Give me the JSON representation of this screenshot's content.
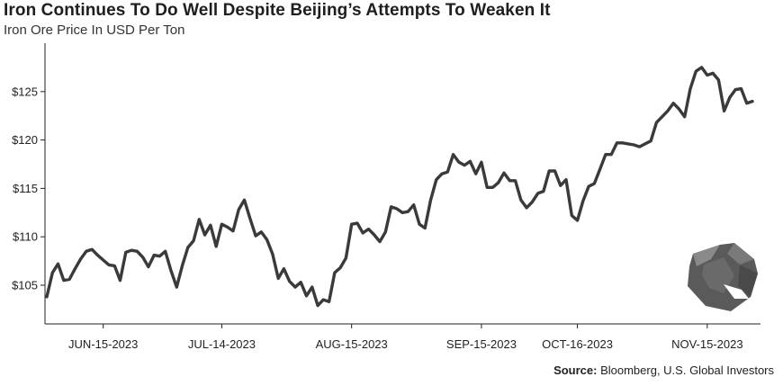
{
  "header": {
    "title": "Iron Continues To Do Well Despite Beijing’s Attempts To Weaken It",
    "subtitle": "Iron Ore Price In USD Per Ton"
  },
  "footer": {
    "source_label": "Source:",
    "source_text": " Bloomberg, U.S. Global Investors"
  },
  "logo": {
    "icon": "rock-icon",
    "color": "#555555"
  },
  "chart_data": {
    "type": "line",
    "title": "Iron Continues To Do Well Despite Beijing’s Attempts To Weaken It",
    "subtitle": "Iron Ore Price In USD Per Ton",
    "xlabel": "",
    "ylabel": "",
    "ylim": [
      101,
      130
    ],
    "yticks": [
      105,
      110,
      115,
      120,
      125
    ],
    "ytick_labels": [
      "$105",
      "$110",
      "$115",
      "$120",
      "$125"
    ],
    "x_ticks": [
      {
        "label": "JUN-15-2023",
        "index": 10
      },
      {
        "label": "JUL-14-2023",
        "index": 31
      },
      {
        "label": "AUG-15-2023",
        "index": 54
      },
      {
        "label": "SEP-15-2023",
        "index": 77
      },
      {
        "label": "OCT-16-2023",
        "index": 94
      },
      {
        "label": "NOV-15-2023",
        "index": 117
      }
    ],
    "grid": false,
    "legend": "none",
    "line_color": "#3a3a3a",
    "series": [
      {
        "values": [
          103.8,
          106.3,
          107.2,
          105.5,
          105.6,
          106.7,
          107.7,
          108.5,
          108.7,
          108.1,
          107.6,
          107.1,
          107.0,
          105.5,
          108.4,
          108.6,
          108.5,
          107.9,
          106.9,
          108.1,
          108.0,
          108.5,
          106.5,
          104.8,
          107.0,
          108.9,
          109.6,
          111.8,
          110.2,
          111.2,
          109.0,
          111.3,
          111.0,
          110.6,
          112.8,
          113.8,
          111.9,
          110.1,
          110.5,
          109.7,
          108.2,
          105.7,
          106.7,
          105.4,
          104.8,
          105.3,
          103.9,
          104.8,
          102.9,
          103.5,
          103.3,
          106.3,
          106.8,
          107.8,
          111.3,
          111.4,
          110.4,
          110.8,
          110.2,
          109.5,
          110.5,
          113.1,
          112.9,
          112.5,
          112.6,
          113.3,
          111.3,
          110.9,
          113.8,
          115.9,
          116.5,
          116.7,
          118.5,
          117.7,
          117.4,
          117.8,
          116.5,
          117.7,
          115.1,
          115.1,
          115.6,
          116.6,
          115.8,
          115.8,
          113.8,
          113.0,
          113.6,
          114.5,
          114.7,
          116.8,
          116.8,
          115.3,
          115.9,
          112.2,
          111.7,
          113.7,
          115.2,
          115.5,
          117.0,
          118.5,
          118.5,
          119.7,
          119.7,
          119.6,
          119.5,
          119.3,
          119.6,
          119.9,
          121.8,
          122.4,
          123.0,
          123.8,
          123.2,
          122.4,
          125.3,
          127.1,
          127.5,
          126.7,
          126.9,
          126.2,
          123.0,
          124.4,
          125.2,
          125.3,
          123.8,
          124.0
        ]
      }
    ]
  }
}
